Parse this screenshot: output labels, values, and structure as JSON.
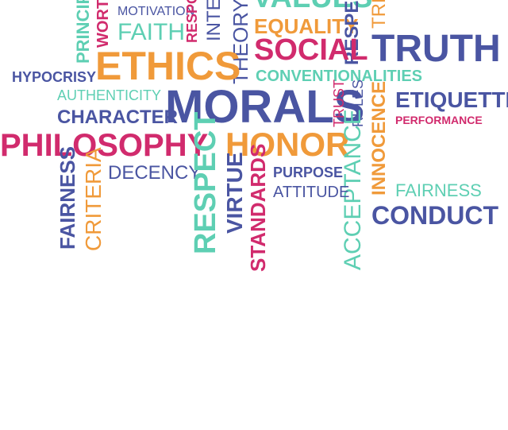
{
  "palette": {
    "navy": "#4a55a2",
    "orange": "#f09a3a",
    "teal": "#5ecfb3",
    "magenta": "#d12b6d"
  },
  "words": {
    "values": "VALUES",
    "motivation": "MOTIVATION",
    "faith": "FAITH",
    "principles_fragment": "PRINCIP",
    "worth_fragment": "WORT",
    "respo_fragment": "RESPO",
    "integ_fragment": "INTEG",
    "theory": "THEORY",
    "equality": "EQUALITY",
    "respect_top_fragment": "RESPEC",
    "tr_fragment": "TRE",
    "ethics": "ETHICS",
    "social": "SOCIAL",
    "truth": "TRUTH",
    "hypocrisy": "HYPOCRISY",
    "conventionalities": "CONVENTIONALITIES",
    "authenticity": "AUTHENTICITY",
    "character": "CHARACTER",
    "morals": "MORALS",
    "trust": "TRUST",
    "rules": "RULES",
    "innocence": "INNOCENCE",
    "etiquette": "ETIQUETTE",
    "performance": "PERFORMANCE",
    "philosophy": "PHILOSOPHY",
    "honor": "HONOR",
    "fairness_vertical": "FAIRNESS",
    "criteria": "CRITERIA",
    "decency": "DECENCY",
    "respect_vertical": "RESPECT",
    "virtue": "VIRTUE",
    "standards": "STANDARDS",
    "purpose": "PURPOSE",
    "attitude": "ATTITUDE",
    "acceptance": "ACCEPTANCE",
    "fairness": "FAIRNESS",
    "conduct": "CONDUCT"
  }
}
